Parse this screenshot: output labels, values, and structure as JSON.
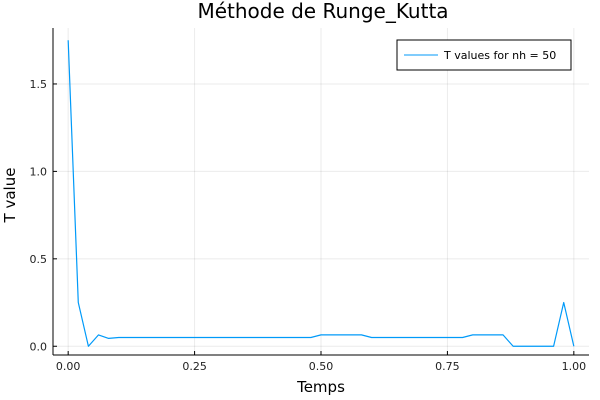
{
  "chart_data": {
    "type": "line",
    "title": "Méthode de Runge_Kutta",
    "xlabel": "Temps",
    "ylabel": "T value",
    "xlim": [
      -0.03,
      1.03
    ],
    "ylim": [
      -0.05,
      1.82
    ],
    "xticks": [
      0.0,
      0.25,
      0.5,
      0.75,
      1.0
    ],
    "xtick_labels": [
      "0.00",
      "0.25",
      "0.50",
      "0.75",
      "1.00"
    ],
    "yticks": [
      0.0,
      0.5,
      1.0,
      1.5
    ],
    "ytick_labels": [
      "0.0",
      "0.5",
      "1.0",
      "1.5"
    ],
    "grid": true,
    "legend_position": "top-right",
    "series": [
      {
        "name": "T values for nh = 50",
        "color": "#009af9",
        "x": [
          0.0,
          0.02,
          0.04,
          0.06,
          0.08,
          0.1,
          0.12,
          0.14,
          0.16,
          0.18,
          0.2,
          0.22,
          0.24,
          0.26,
          0.28,
          0.3,
          0.32,
          0.34,
          0.36,
          0.38,
          0.4,
          0.42,
          0.44,
          0.46,
          0.48,
          0.5,
          0.52,
          0.54,
          0.56,
          0.58,
          0.6,
          0.62,
          0.64,
          0.66,
          0.68,
          0.7,
          0.72,
          0.74,
          0.76,
          0.78,
          0.8,
          0.82,
          0.84,
          0.86,
          0.88,
          0.9,
          0.92,
          0.94,
          0.96,
          0.98,
          1.0
        ],
        "y": [
          1.75,
          0.25,
          0.0,
          0.065,
          0.045,
          0.05,
          0.05,
          0.05,
          0.05,
          0.05,
          0.05,
          0.05,
          0.05,
          0.05,
          0.05,
          0.05,
          0.05,
          0.05,
          0.05,
          0.05,
          0.05,
          0.05,
          0.05,
          0.05,
          0.05,
          0.065,
          0.065,
          0.065,
          0.065,
          0.065,
          0.05,
          0.05,
          0.05,
          0.05,
          0.05,
          0.05,
          0.05,
          0.05,
          0.05,
          0.05,
          0.065,
          0.065,
          0.065,
          0.065,
          0.0,
          0.0,
          0.0,
          0.0,
          0.0,
          0.25,
          0.0
        ]
      }
    ]
  }
}
